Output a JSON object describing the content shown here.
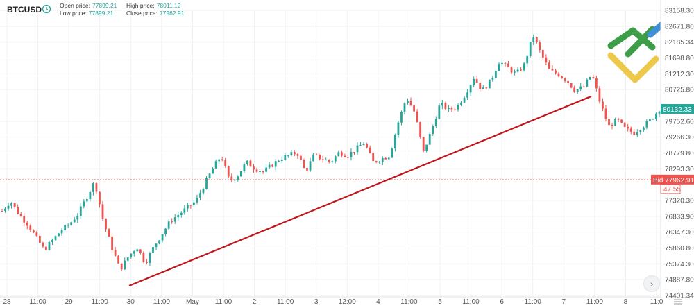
{
  "header": {
    "symbol": "BTCUSD",
    "open_label": "Open price:",
    "open_value": "77899.21",
    "high_label": "High price:",
    "high_value": "78011.12",
    "low_label": "Low price:",
    "low_value": "77899.21",
    "close_label": "Close price:",
    "close_value": "77962.91"
  },
  "colors": {
    "up": "#26a69a",
    "down": "#ef5350",
    "trendline": "#c0161b",
    "bid": "#ef5350",
    "last": "#26a69a",
    "grid": "#eef0f3"
  },
  "chart_data": {
    "type": "candlestick",
    "title": "",
    "symbol": "BTCUSD",
    "ylim": [
      74401.34,
      83158.3
    ],
    "y_ticks": [
      "83158.30",
      "82671.80",
      "82185.34",
      "81698.80",
      "81212.30",
      "80725.80",
      "79752.60",
      "79266.30",
      "78779.80",
      "78293.30",
      "77320.30",
      "76833.90",
      "76347.30",
      "75860.80",
      "75374.30",
      "74887.80",
      "74401.34"
    ],
    "x_ticks": [
      "28",
      "11:00",
      "29",
      "11:00",
      "30",
      "11:00",
      "May",
      "11:00",
      "2",
      "11:00",
      "3",
      "12:00",
      "4",
      "11:00",
      "5",
      "11:00",
      "6",
      "11:00",
      "7",
      "11:00",
      "8",
      "11:0"
    ],
    "current_price_label": "80132.33",
    "current_price": 80132.33,
    "bid_label": "Bid 77962.91",
    "bid_price": 77962.91,
    "spread_label": "47.55",
    "trendline": {
      "from": {
        "x": "30 ~00:00",
        "y": 74700
      },
      "to": {
        "x": "7 ~10:00",
        "y": 80520
      }
    },
    "price_path": [
      77000,
      77300,
      76900,
      76600,
      76200,
      75800,
      76100,
      76400,
      76600,
      76900,
      77400,
      77900,
      76700,
      75900,
      75200,
      75600,
      75900,
      75400,
      75900,
      76300,
      76700,
      76900,
      77100,
      77300,
      77800,
      78300,
      78700,
      77900,
      78100,
      78500,
      78300,
      78200,
      78400,
      78600,
      78700,
      78800,
      78200,
      78700,
      78600,
      78500,
      78800,
      78700,
      78900,
      79100,
      78500,
      78600,
      78700,
      79700,
      80500,
      80000,
      78800,
      79500,
      80300,
      80100,
      80200,
      80600,
      81100,
      80700,
      81000,
      81600,
      81400,
      81200,
      81500,
      82400,
      81800,
      81300,
      81200,
      81000,
      80700,
      80800,
      81200,
      80300,
      79600,
      79800,
      79500,
      79400,
      79600,
      79800,
      80132
    ]
  }
}
